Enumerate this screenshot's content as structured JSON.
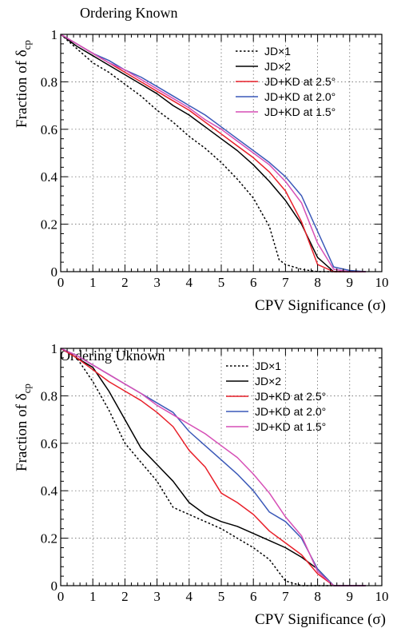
{
  "chart_data": [
    {
      "type": "line",
      "title": "Ordering Known",
      "xlabel": "CPV Significance (σ)",
      "ylabel_prefix": "Fraction of ",
      "ylabel_symbol": "δ",
      "ylabel_sub": "cp",
      "xlim": [
        0,
        10
      ],
      "ylim": [
        0,
        1
      ],
      "xticks": [
        "0",
        "1",
        "2",
        "3",
        "4",
        "5",
        "6",
        "7",
        "8",
        "9",
        "10"
      ],
      "yticks": [
        "0",
        "0.2",
        "0.4",
        "0.6",
        "0.8",
        "1"
      ],
      "grid": true,
      "legend_position": "top-right",
      "series": [
        {
          "name": "JD×1",
          "color": "#000000",
          "dash": "dotted",
          "x": [
            0,
            0.5,
            1,
            1.5,
            2,
            2.5,
            3,
            3.5,
            4,
            4.5,
            5,
            5.5,
            6,
            6.5,
            6.8,
            7,
            7.5,
            8,
            8.5,
            9.5
          ],
          "y": [
            1,
            0.94,
            0.88,
            0.84,
            0.79,
            0.74,
            0.68,
            0.63,
            0.57,
            0.52,
            0.46,
            0.39,
            0.31,
            0.19,
            0.05,
            0.03,
            0.01,
            0,
            0,
            0
          ]
        },
        {
          "name": "JD×2",
          "color": "#000000",
          "dash": "solid",
          "x": [
            0,
            0.5,
            1,
            1.5,
            2,
            2.5,
            3,
            3.5,
            4,
            4.5,
            5,
            5.5,
            6,
            6.5,
            7,
            7.5,
            8,
            8.5,
            9.5
          ],
          "y": [
            1,
            0.95,
            0.91,
            0.87,
            0.83,
            0.79,
            0.75,
            0.7,
            0.66,
            0.61,
            0.56,
            0.51,
            0.45,
            0.38,
            0.3,
            0.2,
            0.06,
            0,
            0
          ]
        },
        {
          "name": "JD+KD at 2.5°",
          "color": "#e8202a",
          "dash": "solid",
          "x": [
            0,
            0.5,
            1,
            1.5,
            2,
            2.5,
            3,
            3.5,
            4,
            4.5,
            5,
            5.5,
            6,
            6.5,
            7,
            7.5,
            8,
            8.5,
            9.5
          ],
          "y": [
            1,
            0.96,
            0.92,
            0.88,
            0.84,
            0.8,
            0.76,
            0.72,
            0.68,
            0.63,
            0.58,
            0.53,
            0.48,
            0.42,
            0.34,
            0.21,
            0.03,
            0,
            0
          ]
        },
        {
          "name": "JD+KD at 2.0°",
          "color": "#3a58b8",
          "dash": "solid",
          "x": [
            0,
            0.5,
            1,
            1.5,
            2,
            2.5,
            3,
            3.5,
            4,
            4.5,
            5,
            5.5,
            6,
            6.5,
            7,
            7.5,
            8,
            8.5,
            9,
            9.5
          ],
          "y": [
            1,
            0.96,
            0.92,
            0.89,
            0.85,
            0.82,
            0.78,
            0.74,
            0.7,
            0.66,
            0.61,
            0.56,
            0.51,
            0.46,
            0.4,
            0.32,
            0.17,
            0.02,
            0.005,
            0
          ]
        },
        {
          "name": "JD+KD at 1.5°",
          "color": "#d64fb6",
          "dash": "solid",
          "x": [
            0,
            0.5,
            1,
            1.5,
            2,
            2.5,
            3,
            3.5,
            4,
            4.5,
            5,
            5.5,
            6,
            6.5,
            7,
            7.5,
            8,
            8.5,
            9,
            9.5
          ],
          "y": [
            1,
            0.96,
            0.92,
            0.88,
            0.85,
            0.81,
            0.77,
            0.73,
            0.69,
            0.64,
            0.6,
            0.55,
            0.5,
            0.45,
            0.38,
            0.29,
            0.12,
            0.01,
            0,
            0
          ]
        }
      ]
    },
    {
      "type": "line",
      "title": "Ordering Uknown",
      "xlabel": "CPV Significance (σ)",
      "ylabel_prefix": "Fraction of ",
      "ylabel_symbol": "δ",
      "ylabel_sub": "cp",
      "xlim": [
        0,
        10
      ],
      "ylim": [
        0,
        1
      ],
      "xticks": [
        "0",
        "1",
        "2",
        "3",
        "4",
        "5",
        "6",
        "7",
        "8",
        "9",
        "10"
      ],
      "yticks": [
        "0",
        "0.2",
        "0.4",
        "0.6",
        "0.8",
        "1"
      ],
      "grid": true,
      "legend_position": "top-right",
      "series": [
        {
          "name": "JD×1",
          "color": "#000000",
          "dash": "dotted",
          "x": [
            0,
            0.5,
            1,
            1.5,
            2,
            2.5,
            3,
            3.5,
            4,
            4.5,
            5,
            5.5,
            6,
            6.5,
            7,
            7.5,
            8,
            8.5,
            9.5
          ],
          "y": [
            1,
            0.96,
            0.86,
            0.74,
            0.6,
            0.52,
            0.44,
            0.33,
            0.3,
            0.27,
            0.24,
            0.2,
            0.16,
            0.11,
            0.02,
            0,
            0,
            0,
            0
          ]
        },
        {
          "name": "JD×2",
          "color": "#000000",
          "dash": "solid",
          "x": [
            0,
            0.5,
            1,
            1.5,
            2,
            2.5,
            3,
            3.5,
            4,
            4.5,
            5,
            5.5,
            6,
            6.5,
            7,
            7.5,
            8,
            8.5,
            9.5
          ],
          "y": [
            1,
            0.96,
            0.92,
            0.82,
            0.7,
            0.58,
            0.51,
            0.44,
            0.35,
            0.3,
            0.27,
            0.25,
            0.22,
            0.19,
            0.16,
            0.12,
            0.07,
            0,
            0
          ]
        },
        {
          "name": "JD+KD at 2.5°",
          "color": "#e8202a",
          "dash": "solid",
          "x": [
            0,
            0.5,
            1,
            1.5,
            2,
            2.5,
            3,
            3.5,
            4,
            4.5,
            5,
            5.5,
            6,
            6.5,
            7,
            7.5,
            8,
            8.5,
            9.5
          ],
          "y": [
            1,
            0.96,
            0.91,
            0.86,
            0.82,
            0.78,
            0.73,
            0.67,
            0.57,
            0.5,
            0.39,
            0.35,
            0.3,
            0.23,
            0.18,
            0.13,
            0.05,
            0,
            0
          ]
        },
        {
          "name": "JD+KD at 2.0°",
          "color": "#3a58b8",
          "dash": "solid",
          "x": [
            0,
            0.5,
            1,
            1.5,
            2,
            2.5,
            3,
            3.5,
            4,
            4.5,
            5,
            5.5,
            6,
            6.5,
            7,
            7.5,
            8,
            8.5,
            9.5
          ],
          "y": [
            1,
            0.97,
            0.93,
            0.89,
            0.85,
            0.81,
            0.77,
            0.73,
            0.65,
            0.59,
            0.53,
            0.47,
            0.4,
            0.31,
            0.27,
            0.2,
            0.07,
            0,
            0
          ]
        },
        {
          "name": "JD+KD at 1.5°",
          "color": "#d64fb6",
          "dash": "solid",
          "x": [
            0,
            0.5,
            1,
            1.5,
            2,
            2.5,
            3,
            3.5,
            4,
            4.5,
            5,
            5.5,
            6,
            6.5,
            7,
            7.5,
            8,
            8.5,
            9.5
          ],
          "y": [
            1,
            0.97,
            0.93,
            0.89,
            0.85,
            0.81,
            0.76,
            0.72,
            0.68,
            0.64,
            0.59,
            0.54,
            0.47,
            0.39,
            0.29,
            0.21,
            0.06,
            0,
            0
          ]
        }
      ]
    }
  ]
}
